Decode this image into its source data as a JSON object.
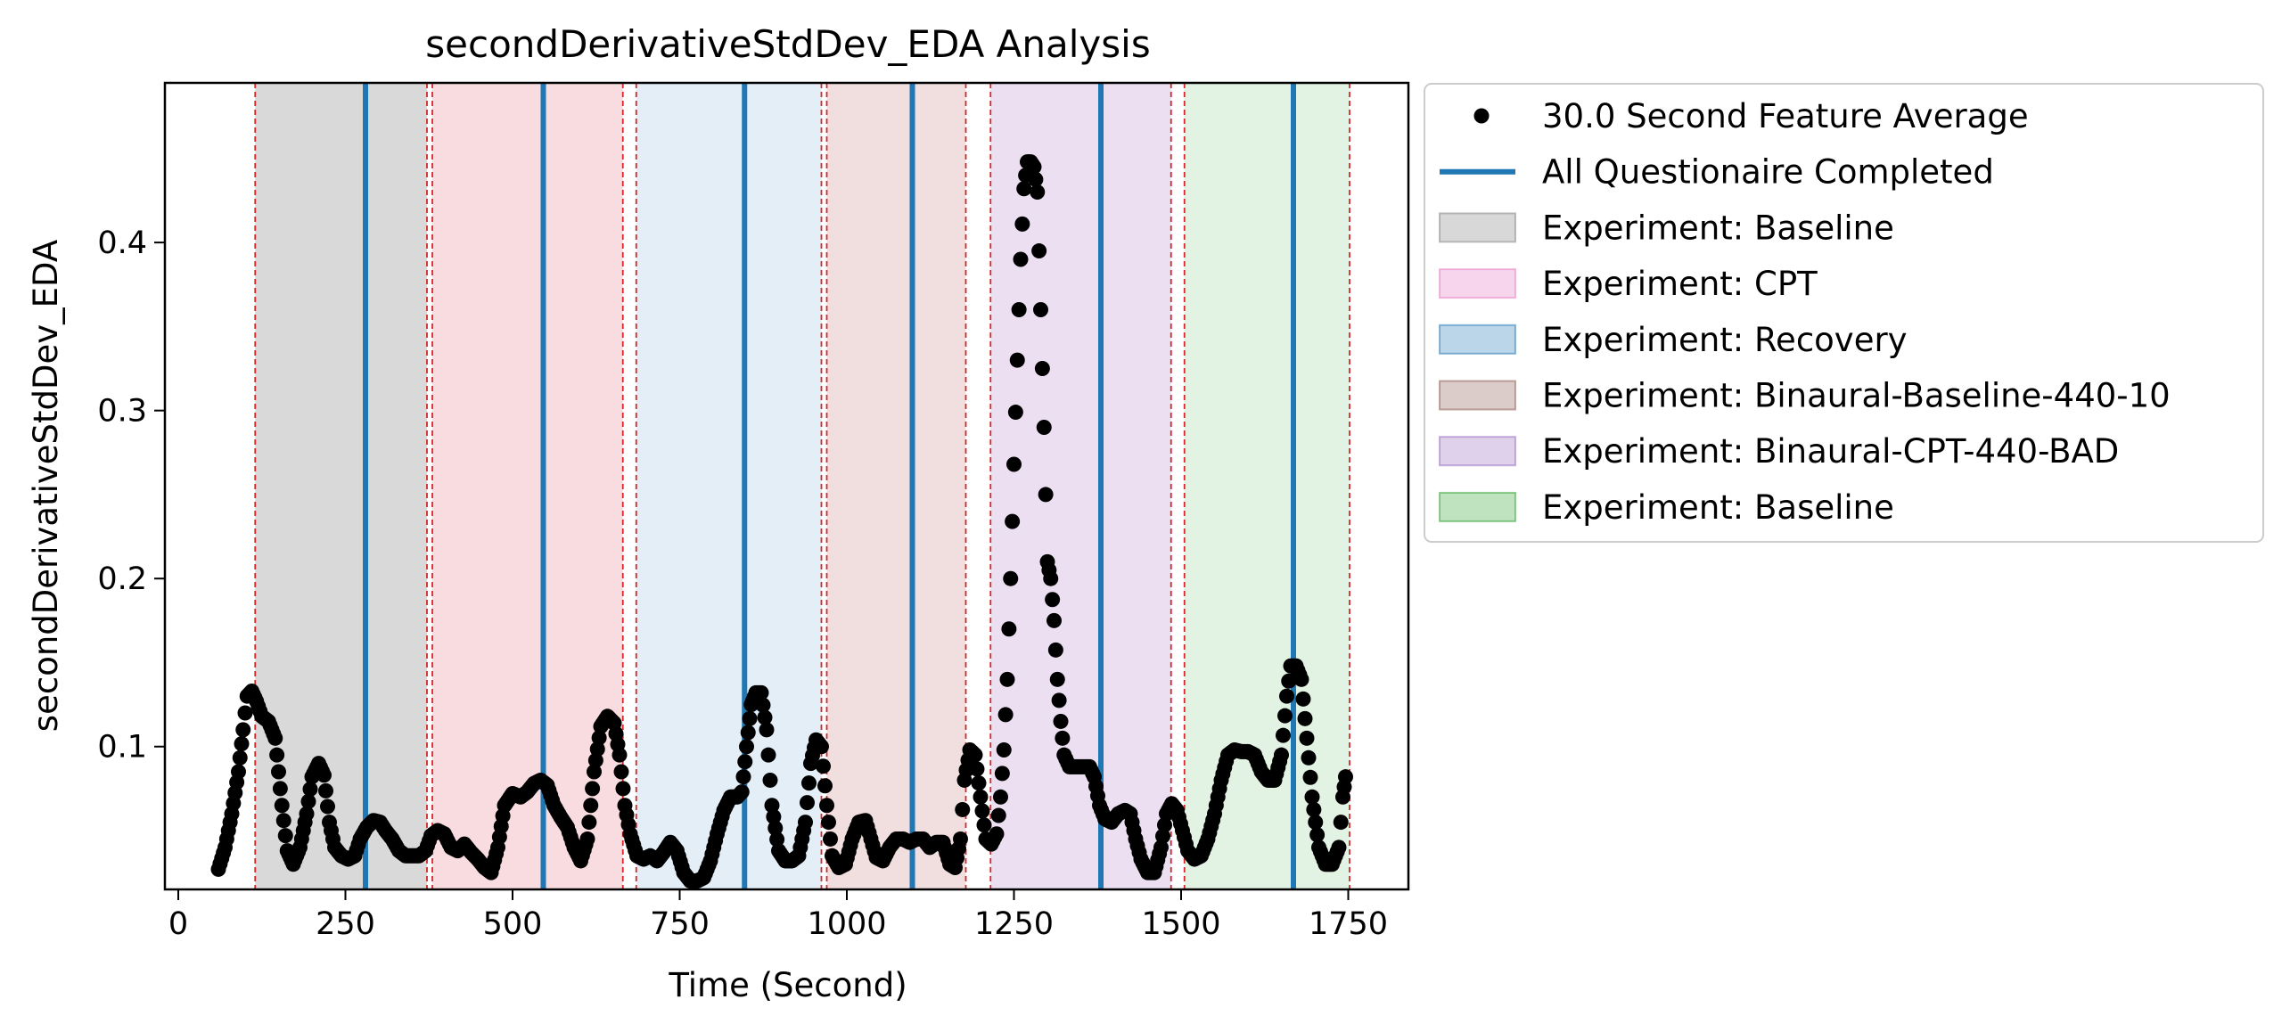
{
  "chart_data": {
    "type": "scatter",
    "title": "secondDerivativeStdDev_EDA Analysis",
    "xlabel": "Time (Second)",
    "ylabel": "secondDerivativeStdDev_EDA",
    "xlim": [
      -20,
      1840
    ],
    "ylim": [
      0.015,
      0.495
    ],
    "xticks": [
      0,
      250,
      500,
      750,
      1000,
      1250,
      1500,
      1750
    ],
    "xtick_labels": [
      "0",
      "250",
      "500",
      "750",
      "1000",
      "1250",
      "1500",
      "1750"
    ],
    "yticks": [
      0.1,
      0.2,
      0.3,
      0.4
    ],
    "ytick_labels": [
      "0.1",
      "0.2",
      "0.3",
      "0.4"
    ],
    "grid": false,
    "legend_placement": "outside upper right",
    "legend": [
      {
        "label": "30.0 Second Feature Average",
        "kind": "marker",
        "color": "#000000"
      },
      {
        "label": "All Questionaire Completed",
        "kind": "line",
        "color": "#1f77b4"
      },
      {
        "label": "Experiment: Baseline",
        "kind": "patch",
        "color": "#7f7f7f"
      },
      {
        "label": "Experiment: CPT",
        "kind": "patch",
        "color": "#e377c2"
      },
      {
        "label": "Experiment: Recovery",
        "kind": "patch",
        "color": "#1f77b4"
      },
      {
        "label": "Experiment: Binaural-Baseline-440-10",
        "kind": "patch",
        "color": "#8c564b"
      },
      {
        "label": "Experiment: Binaural-CPT-440-BAD",
        "kind": "patch",
        "color": "#9467bd"
      },
      {
        "label": "Experiment: Baseline",
        "kind": "patch",
        "color": "#2ca02c"
      }
    ],
    "regions": [
      {
        "name": "Experiment: Baseline",
        "start": 115,
        "end": 372,
        "color": "#a0a0a0"
      },
      {
        "name": "Experiment: CPT",
        "start": 380,
        "end": 665,
        "color": "#f0a8ae"
      },
      {
        "name": "Experiment: Recovery",
        "start": 685,
        "end": 962,
        "color": "#b8d4ea"
      },
      {
        "name": "Experiment: Binaural-Baseline-440-10",
        "start": 970,
        "end": 1178,
        "color": "#ddb0b0"
      },
      {
        "name": "Experiment: Binaural-CPT-440-BAD",
        "start": 1215,
        "end": 1485,
        "color": "#ceaedb"
      },
      {
        "name": "Experiment: Baseline",
        "start": 1505,
        "end": 1752,
        "color": "#b8e0b8"
      }
    ],
    "region_boundaries": [
      115,
      372,
      380,
      665,
      685,
      962,
      970,
      1178,
      1215,
      1485,
      1505,
      1752
    ],
    "questionnaire_completed_x": [
      280,
      546,
      847,
      1098,
      1380,
      1668
    ],
    "series": [
      {
        "name": "30.0 Second Feature Average",
        "points": [
          [
            60,
            0.027
          ],
          [
            70,
            0.04
          ],
          [
            80,
            0.06
          ],
          [
            90,
            0.085
          ],
          [
            97,
            0.11
          ],
          [
            103,
            0.13
          ],
          [
            110,
            0.133
          ],
          [
            117,
            0.127
          ],
          [
            125,
            0.118
          ],
          [
            135,
            0.115
          ],
          [
            145,
            0.105
          ],
          [
            155,
            0.065
          ],
          [
            163,
            0.038
          ],
          [
            172,
            0.03
          ],
          [
            182,
            0.04
          ],
          [
            192,
            0.06
          ],
          [
            200,
            0.082
          ],
          [
            210,
            0.09
          ],
          [
            218,
            0.083
          ],
          [
            226,
            0.055
          ],
          [
            234,
            0.04
          ],
          [
            244,
            0.035
          ],
          [
            254,
            0.033
          ],
          [
            264,
            0.035
          ],
          [
            272,
            0.045
          ],
          [
            282,
            0.052
          ],
          [
            292,
            0.056
          ],
          [
            302,
            0.055
          ],
          [
            310,
            0.05
          ],
          [
            320,
            0.045
          ],
          [
            330,
            0.038
          ],
          [
            340,
            0.035
          ],
          [
            350,
            0.035
          ],
          [
            360,
            0.035
          ],
          [
            370,
            0.038
          ],
          [
            378,
            0.047
          ],
          [
            388,
            0.05
          ],
          [
            398,
            0.048
          ],
          [
            408,
            0.04
          ],
          [
            418,
            0.038
          ],
          [
            428,
            0.042
          ],
          [
            438,
            0.037
          ],
          [
            448,
            0.033
          ],
          [
            458,
            0.028
          ],
          [
            468,
            0.025
          ],
          [
            478,
            0.04
          ],
          [
            488,
            0.065
          ],
          [
            500,
            0.072
          ],
          [
            512,
            0.07
          ],
          [
            522,
            0.073
          ],
          [
            532,
            0.078
          ],
          [
            542,
            0.08
          ],
          [
            552,
            0.077
          ],
          [
            562,
            0.065
          ],
          [
            572,
            0.058
          ],
          [
            582,
            0.052
          ],
          [
            592,
            0.04
          ],
          [
            602,
            0.032
          ],
          [
            612,
            0.045
          ],
          [
            622,
            0.085
          ],
          [
            632,
            0.112
          ],
          [
            642,
            0.118
          ],
          [
            652,
            0.114
          ],
          [
            660,
            0.095
          ],
          [
            668,
            0.065
          ],
          [
            676,
            0.048
          ],
          [
            686,
            0.035
          ],
          [
            696,
            0.033
          ],
          [
            706,
            0.035
          ],
          [
            716,
            0.032
          ],
          [
            726,
            0.037
          ],
          [
            736,
            0.043
          ],
          [
            746,
            0.038
          ],
          [
            756,
            0.025
          ],
          [
            766,
            0.02
          ],
          [
            776,
            0.02
          ],
          [
            786,
            0.022
          ],
          [
            796,
            0.032
          ],
          [
            806,
            0.048
          ],
          [
            816,
            0.062
          ],
          [
            826,
            0.07
          ],
          [
            836,
            0.07
          ],
          [
            843,
            0.073
          ],
          [
            850,
            0.1
          ],
          [
            857,
            0.125
          ],
          [
            864,
            0.132
          ],
          [
            872,
            0.132
          ],
          [
            880,
            0.11
          ],
          [
            888,
            0.065
          ],
          [
            898,
            0.038
          ],
          [
            908,
            0.032
          ],
          [
            918,
            0.032
          ],
          [
            928,
            0.035
          ],
          [
            938,
            0.055
          ],
          [
            946,
            0.09
          ],
          [
            954,
            0.104
          ],
          [
            962,
            0.1
          ],
          [
            970,
            0.065
          ],
          [
            978,
            0.035
          ],
          [
            988,
            0.028
          ],
          [
            998,
            0.03
          ],
          [
            1008,
            0.045
          ],
          [
            1018,
            0.055
          ],
          [
            1028,
            0.056
          ],
          [
            1036,
            0.045
          ],
          [
            1044,
            0.034
          ],
          [
            1054,
            0.032
          ],
          [
            1064,
            0.04
          ],
          [
            1074,
            0.045
          ],
          [
            1084,
            0.045
          ],
          [
            1094,
            0.043
          ],
          [
            1104,
            0.045
          ],
          [
            1114,
            0.045
          ],
          [
            1124,
            0.04
          ],
          [
            1134,
            0.043
          ],
          [
            1144,
            0.043
          ],
          [
            1154,
            0.03
          ],
          [
            1162,
            0.028
          ],
          [
            1170,
            0.045
          ],
          [
            1176,
            0.08
          ],
          [
            1184,
            0.098
          ],
          [
            1192,
            0.095
          ],
          [
            1200,
            0.07
          ],
          [
            1208,
            0.045
          ],
          [
            1216,
            0.042
          ],
          [
            1224,
            0.048
          ],
          [
            1230,
            0.07
          ],
          [
            1235,
            0.098
          ],
          [
            1240,
            0.14
          ],
          [
            1245,
            0.2
          ],
          [
            1250,
            0.268
          ],
          [
            1255,
            0.33
          ],
          [
            1260,
            0.39
          ],
          [
            1265,
            0.432
          ],
          [
            1270,
            0.448
          ],
          [
            1275,
            0.448
          ],
          [
            1280,
            0.445
          ],
          [
            1285,
            0.43
          ],
          [
            1290,
            0.36
          ],
          [
            1295,
            0.29
          ],
          [
            1300,
            0.21
          ],
          [
            1305,
            0.2
          ],
          [
            1310,
            0.175
          ],
          [
            1315,
            0.14
          ],
          [
            1320,
            0.115
          ],
          [
            1325,
            0.095
          ],
          [
            1333,
            0.088
          ],
          [
            1343,
            0.088
          ],
          [
            1353,
            0.088
          ],
          [
            1363,
            0.088
          ],
          [
            1370,
            0.082
          ],
          [
            1378,
            0.065
          ],
          [
            1386,
            0.057
          ],
          [
            1396,
            0.055
          ],
          [
            1406,
            0.06
          ],
          [
            1416,
            0.062
          ],
          [
            1424,
            0.06
          ],
          [
            1432,
            0.045
          ],
          [
            1440,
            0.033
          ],
          [
            1450,
            0.025
          ],
          [
            1460,
            0.025
          ],
          [
            1470,
            0.04
          ],
          [
            1478,
            0.06
          ],
          [
            1486,
            0.066
          ],
          [
            1494,
            0.062
          ],
          [
            1502,
            0.05
          ],
          [
            1510,
            0.038
          ],
          [
            1520,
            0.033
          ],
          [
            1530,
            0.035
          ],
          [
            1540,
            0.045
          ],
          [
            1550,
            0.06
          ],
          [
            1560,
            0.08
          ],
          [
            1570,
            0.095
          ],
          [
            1580,
            0.098
          ],
          [
            1590,
            0.097
          ],
          [
            1600,
            0.097
          ],
          [
            1610,
            0.095
          ],
          [
            1620,
            0.085
          ],
          [
            1630,
            0.08
          ],
          [
            1640,
            0.08
          ],
          [
            1650,
            0.095
          ],
          [
            1658,
            0.13
          ],
          [
            1664,
            0.148
          ],
          [
            1672,
            0.148
          ],
          [
            1680,
            0.14
          ],
          [
            1688,
            0.105
          ],
          [
            1696,
            0.07
          ],
          [
            1706,
            0.04
          ],
          [
            1716,
            0.03
          ],
          [
            1726,
            0.03
          ],
          [
            1736,
            0.04
          ],
          [
            1742,
            0.07
          ],
          [
            1746,
            0.082
          ]
        ]
      }
    ]
  }
}
